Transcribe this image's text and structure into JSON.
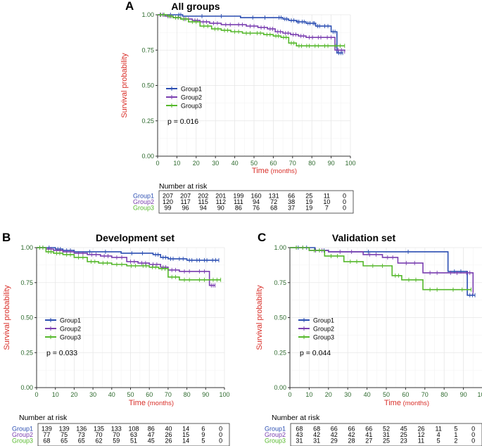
{
  "colors": {
    "group1": "#2b4eb2",
    "group2": "#7a3fb0",
    "group3": "#55b82b",
    "axis_label": "#d9302a",
    "tick_label": "#2e6a2e",
    "risk_label1": "#2b4eb2",
    "risk_label2": "#7a3fb0",
    "risk_label3": "#55b82b",
    "grid": "#e6e6e6"
  },
  "chart_data": [
    {
      "type": "line",
      "subtype": "kaplan-meier",
      "panel_letter": "A",
      "title": "All groups",
      "xlabel_main": "Time",
      "xlabel_unit": "(months)",
      "ylabel": "Survival probability",
      "xlim": [
        0,
        100
      ],
      "ylim": [
        0,
        1
      ],
      "x_ticks": [
        "0",
        "10",
        "20",
        "30",
        "40",
        "50",
        "60",
        "70",
        "80",
        "90",
        "100"
      ],
      "y_ticks": [
        "0.00",
        "0.25",
        "0.50",
        "0.75",
        "1.00"
      ],
      "legend": [
        "Group1",
        "Group2",
        "Group3"
      ],
      "legend_position": "bottom-left",
      "p_value": "p = 0.016",
      "series": [
        {
          "name": "Group1",
          "x": [
            0,
            10,
            13,
            43,
            62,
            65,
            68,
            72,
            74,
            77,
            80,
            82,
            85,
            90,
            93,
            96
          ],
          "y": [
            1.0,
            1.0,
            0.99,
            0.98,
            0.98,
            0.97,
            0.96,
            0.95,
            0.95,
            0.94,
            0.94,
            0.92,
            0.92,
            0.88,
            0.73,
            0.73
          ]
        },
        {
          "name": "Group2",
          "x": [
            0,
            4,
            8,
            12,
            18,
            22,
            27,
            33,
            40,
            46,
            52,
            57,
            61,
            65,
            69,
            73,
            77,
            82,
            86,
            92,
            97
          ],
          "y": [
            1.0,
            0.99,
            0.98,
            0.97,
            0.96,
            0.95,
            0.94,
            0.93,
            0.93,
            0.92,
            0.91,
            0.9,
            0.88,
            0.87,
            0.86,
            0.85,
            0.84,
            0.84,
            0.84,
            0.75,
            0.74
          ]
        },
        {
          "name": "Group3",
          "x": [
            0,
            5,
            8,
            12,
            16,
            22,
            28,
            33,
            38,
            44,
            50,
            55,
            60,
            64,
            68,
            72,
            76,
            80,
            85,
            90,
            97
          ],
          "y": [
            1.0,
            0.99,
            0.98,
            0.97,
            0.95,
            0.92,
            0.9,
            0.89,
            0.88,
            0.87,
            0.87,
            0.86,
            0.85,
            0.84,
            0.8,
            0.78,
            0.78,
            0.78,
            0.78,
            0.78,
            0.78
          ]
        }
      ],
      "risk_table": {
        "title": "Number at risk",
        "rows": [
          {
            "label": "Group1",
            "values": [
              "207",
              "207",
              "202",
              "201",
              "199",
              "160",
              "131",
              "66",
              "25",
              "11",
              "0"
            ]
          },
          {
            "label": "Group2",
            "values": [
              "120",
              "117",
              "115",
              "112",
              "111",
              "94",
              "72",
              "38",
              "19",
              "10",
              "0"
            ]
          },
          {
            "label": "Group3",
            "values": [
              "99",
              "96",
              "94",
              "90",
              "86",
              "76",
              "68",
              "37",
              "19",
              "7",
              "0"
            ]
          }
        ]
      }
    },
    {
      "type": "line",
      "subtype": "kaplan-meier",
      "panel_letter": "B",
      "title": "Development set",
      "xlabel_main": "Time",
      "xlabel_unit": "(months)",
      "ylabel": "Survival probability",
      "xlim": [
        0,
        100
      ],
      "ylim": [
        0,
        1
      ],
      "x_ticks": [
        "0",
        "10",
        "20",
        "30",
        "40",
        "50",
        "60",
        "70",
        "80",
        "90",
        "100"
      ],
      "y_ticks": [
        "0.00",
        "0.25",
        "0.50",
        "0.75",
        "1.00"
      ],
      "legend": [
        "Group1",
        "Group2",
        "Group3"
      ],
      "legend_position": "bottom-left",
      "p_value": "p = 0.033",
      "series": [
        {
          "name": "Group1",
          "x": [
            0,
            10,
            14,
            20,
            45,
            62,
            66,
            70,
            74,
            80,
            84,
            88,
            92,
            97
          ],
          "y": [
            1.0,
            0.99,
            0.98,
            0.97,
            0.96,
            0.95,
            0.93,
            0.92,
            0.92,
            0.91,
            0.91,
            0.91,
            0.91,
            0.91
          ]
        },
        {
          "name": "Group2",
          "x": [
            0,
            5,
            9,
            14,
            20,
            27,
            34,
            40,
            48,
            54,
            60,
            66,
            70,
            76,
            84,
            92,
            95
          ],
          "y": [
            1.0,
            0.99,
            0.98,
            0.97,
            0.96,
            0.95,
            0.94,
            0.93,
            0.9,
            0.89,
            0.88,
            0.86,
            0.84,
            0.83,
            0.83,
            0.73,
            0.73
          ]
        },
        {
          "name": "Group3",
          "x": [
            0,
            5,
            9,
            14,
            20,
            27,
            33,
            40,
            48,
            55,
            60,
            65,
            70,
            76,
            84,
            92,
            98
          ],
          "y": [
            1.0,
            0.97,
            0.96,
            0.95,
            0.93,
            0.9,
            0.89,
            0.88,
            0.87,
            0.87,
            0.86,
            0.85,
            0.79,
            0.77,
            0.77,
            0.77,
            0.77
          ]
        }
      ],
      "risk_table": {
        "title": "Number at risk",
        "rows": [
          {
            "label": "Group1",
            "values": [
              "139",
              "139",
              "136",
              "135",
              "133",
              "108",
              "86",
              "40",
              "14",
              "6",
              "0"
            ]
          },
          {
            "label": "Group2",
            "values": [
              "77",
              "75",
              "73",
              "70",
              "70",
              "63",
              "47",
              "26",
              "15",
              "9",
              "0"
            ]
          },
          {
            "label": "Group3",
            "values": [
              "68",
              "65",
              "65",
              "62",
              "59",
              "51",
              "45",
              "26",
              "14",
              "5",
              "0"
            ]
          }
        ]
      }
    },
    {
      "type": "line",
      "subtype": "kaplan-meier",
      "panel_letter": "C",
      "title": "Validation set",
      "xlabel_main": "Time",
      "xlabel_unit": "(months)",
      "ylabel": "Survival probability",
      "xlim": [
        0,
        100
      ],
      "ylim": [
        0,
        1
      ],
      "x_ticks": [
        "0",
        "10",
        "20",
        "30",
        "40",
        "50",
        "60",
        "70",
        "80",
        "90",
        "100"
      ],
      "y_ticks": [
        "0.00",
        "0.25",
        "0.50",
        "0.75",
        "1.00"
      ],
      "legend": [
        "Group1",
        "Group2",
        "Group3"
      ],
      "legend_position": "bottom-left",
      "p_value": "p = 0.044",
      "series": [
        {
          "name": "Group1",
          "x": [
            0,
            13,
            20,
            82,
            92,
            96
          ],
          "y": [
            1.0,
            0.98,
            0.97,
            0.83,
            0.66,
            0.66
          ]
        },
        {
          "name": "Group2",
          "x": [
            0,
            10,
            20,
            38,
            48,
            56,
            69,
            80,
            90,
            95
          ],
          "y": [
            1.0,
            0.98,
            0.97,
            0.95,
            0.93,
            0.89,
            0.82,
            0.82,
            0.82,
            0.68
          ]
        },
        {
          "name": "Group3",
          "x": [
            0,
            10,
            18,
            28,
            38,
            53,
            58,
            69,
            80,
            94
          ],
          "y": [
            1.0,
            0.98,
            0.94,
            0.9,
            0.87,
            0.8,
            0.77,
            0.7,
            0.7,
            0.7
          ]
        }
      ],
      "risk_table": {
        "title": "Number at risk",
        "rows": [
          {
            "label": "Group1",
            "values": [
              "68",
              "68",
              "66",
              "66",
              "66",
              "52",
              "45",
              "26",
              "11",
              "5",
              "0"
            ]
          },
          {
            "label": "Group2",
            "values": [
              "43",
              "42",
              "42",
              "42",
              "41",
              "31",
              "25",
              "12",
              "4",
              "1",
              "0"
            ]
          },
          {
            "label": "Group3",
            "values": [
              "31",
              "31",
              "29",
              "28",
              "27",
              "25",
              "23",
              "11",
              "5",
              "2",
              "0"
            ]
          }
        ]
      }
    }
  ]
}
